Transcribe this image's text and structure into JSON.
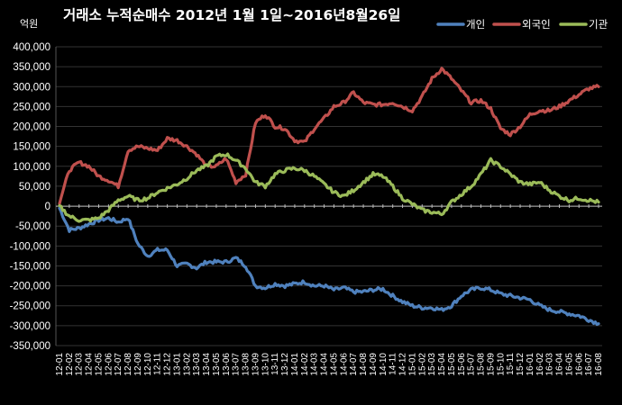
{
  "chart_data": {
    "type": "line",
    "title": "거래소  누적순매수 2012년 1월 1일~2016년8월26일",
    "unit_label": "억원",
    "ylim": [
      -350000,
      400000
    ],
    "y_ticks": [
      400000,
      350000,
      300000,
      250000,
      200000,
      150000,
      100000,
      50000,
      0,
      -50000,
      -100000,
      -150000,
      -200000,
      -250000,
      -300000,
      -350000
    ],
    "y_tick_labels": [
      "400,000",
      "350,000",
      "300,000",
      "250,000",
      "200,000",
      "150,000",
      "100,000",
      "50,000",
      "0",
      "-50,000",
      "-100,000",
      "-150,000",
      "-200,000",
      "-250,000",
      "-300,000",
      "-350,000"
    ],
    "categories": [
      "12-01",
      "12-02",
      "12-03",
      "12-04",
      "12-05",
      "12-06",
      "12-07",
      "12-08",
      "12-09",
      "12-10",
      "12-11",
      "12-12",
      "13-01",
      "13-02",
      "13-03",
      "13-04",
      "13-05",
      "13-06",
      "13-07",
      "13-08",
      "13-09",
      "13-10",
      "13-11",
      "13-12",
      "14-01",
      "14-02",
      "14-03",
      "14-04",
      "14-05",
      "14-06",
      "14-07",
      "14-08",
      "14-09",
      "14-10",
      "14-11",
      "14-12",
      "15-01",
      "15-02",
      "15-03",
      "15-04",
      "15-05",
      "15-06",
      "15-07",
      "15-08",
      "15-09",
      "15-10",
      "15-11",
      "15-12",
      "16-01",
      "16-02",
      "16-03",
      "16-04",
      "16-05",
      "16-06",
      "16-07",
      "16-08"
    ],
    "legend_position": "top-right",
    "grid": true,
    "series": [
      {
        "name": "개인",
        "color": "#4F81BD",
        "values": [
          -5000,
          -60000,
          -55000,
          -45000,
          -35000,
          -30000,
          -40000,
          -30000,
          -95000,
          -125000,
          -110000,
          -110000,
          -150000,
          -145000,
          -155000,
          -140000,
          -140000,
          -140000,
          -130000,
          -150000,
          -200000,
          -205000,
          -195000,
          -200000,
          -195000,
          -190000,
          -200000,
          -200000,
          -210000,
          -205000,
          -215000,
          -215000,
          -210000,
          -208000,
          -225000,
          -240000,
          -250000,
          -255000,
          -255000,
          -260000,
          -250000,
          -225000,
          -210000,
          -205000,
          -210000,
          -220000,
          -225000,
          -230000,
          -235000,
          -250000,
          -260000,
          -265000,
          -270000,
          -275000,
          -285000,
          -295000
        ]
      },
      {
        "name": "외국인",
        "color": "#C0504D",
        "values": [
          10000,
          90000,
          110000,
          100000,
          75000,
          65000,
          50000,
          140000,
          150000,
          145000,
          140000,
          170000,
          165000,
          150000,
          130000,
          100000,
          100000,
          120000,
          60000,
          80000,
          210000,
          230000,
          200000,
          195000,
          165000,
          160000,
          195000,
          220000,
          250000,
          260000,
          285000,
          260000,
          255000,
          255000,
          260000,
          250000,
          240000,
          275000,
          320000,
          345000,
          320000,
          290000,
          260000,
          265000,
          245000,
          195000,
          180000,
          200000,
          230000,
          240000,
          240000,
          250000,
          265000,
          280000,
          295000,
          300000
        ]
      },
      {
        "name": "기관",
        "color": "#9BBB59",
        "values": [
          0,
          -25000,
          -35000,
          -35000,
          -30000,
          -10000,
          15000,
          25000,
          15000,
          20000,
          35000,
          45000,
          55000,
          70000,
          90000,
          100000,
          125000,
          130000,
          115000,
          95000,
          60000,
          50000,
          80000,
          90000,
          95000,
          90000,
          75000,
          55000,
          35000,
          25000,
          40000,
          60000,
          80000,
          75000,
          50000,
          20000,
          5000,
          -10000,
          -15000,
          -20000,
          10000,
          30000,
          50000,
          80000,
          115000,
          100000,
          80000,
          60000,
          55000,
          60000,
          40000,
          25000,
          15000,
          20000,
          15000,
          10000
        ]
      }
    ]
  }
}
